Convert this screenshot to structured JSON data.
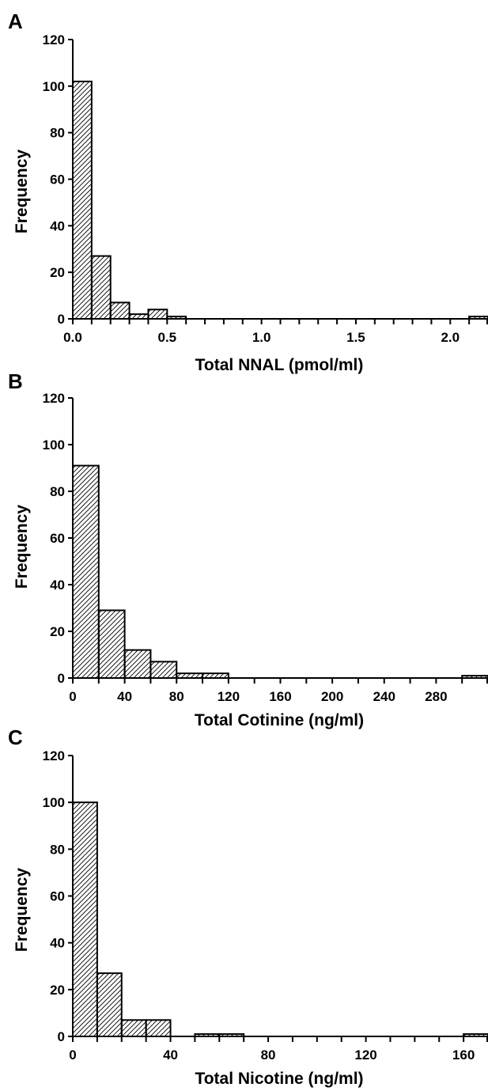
{
  "chart_data": [
    {
      "type": "bar",
      "panel": "A",
      "xlabel": "Total NNAL (pmol/ml)",
      "ylabel": "Frequency",
      "xlim": [
        0,
        2.2
      ],
      "ylim": [
        0,
        120
      ],
      "yticks": [
        0,
        20,
        40,
        60,
        80,
        100,
        120
      ],
      "x_tick_step": 0.1,
      "x_tick_labels": [
        {
          "value": 0,
          "label": "0.0"
        },
        {
          "value": 0.5,
          "label": "0.5"
        },
        {
          "value": 1.0,
          "label": "1.0"
        },
        {
          "value": 1.5,
          "label": "1.5"
        },
        {
          "value": 2.0,
          "label": "2.0"
        }
      ],
      "bins": [
        {
          "x0": 0.0,
          "x1": 0.1,
          "value": 102
        },
        {
          "x0": 0.1,
          "x1": 0.2,
          "value": 27
        },
        {
          "x0": 0.2,
          "x1": 0.3,
          "value": 7
        },
        {
          "x0": 0.3,
          "x1": 0.4,
          "value": 2
        },
        {
          "x0": 0.4,
          "x1": 0.5,
          "value": 4
        },
        {
          "x0": 0.5,
          "x1": 0.6,
          "value": 1
        },
        {
          "x0": 2.1,
          "x1": 2.2,
          "value": 1
        }
      ],
      "hatch": "diagonal"
    },
    {
      "type": "bar",
      "panel": "B",
      "xlabel": "Total Cotinine (ng/ml)",
      "ylabel": "Frequency",
      "xlim": [
        0,
        320
      ],
      "ylim": [
        0,
        120
      ],
      "yticks": [
        0,
        20,
        40,
        60,
        80,
        100,
        120
      ],
      "x_tick_step": 20,
      "x_tick_labels": [
        {
          "value": 0,
          "label": "0"
        },
        {
          "value": 40,
          "label": "40"
        },
        {
          "value": 80,
          "label": "80"
        },
        {
          "value": 120,
          "label": "120"
        },
        {
          "value": 160,
          "label": "160"
        },
        {
          "value": 200,
          "label": "200"
        },
        {
          "value": 240,
          "label": "240"
        },
        {
          "value": 280,
          "label": "280"
        }
      ],
      "bins": [
        {
          "x0": 0,
          "x1": 20,
          "value": 91
        },
        {
          "x0": 20,
          "x1": 40,
          "value": 29
        },
        {
          "x0": 40,
          "x1": 60,
          "value": 12
        },
        {
          "x0": 60,
          "x1": 80,
          "value": 7
        },
        {
          "x0": 80,
          "x1": 100,
          "value": 2
        },
        {
          "x0": 100,
          "x1": 120,
          "value": 2
        },
        {
          "x0": 300,
          "x1": 320,
          "value": 1
        }
      ],
      "hatch": "diagonal"
    },
    {
      "type": "bar",
      "panel": "C",
      "xlabel": "Total Nicotine (ng/ml)",
      "ylabel": "Frequency",
      "xlim": [
        0,
        170
      ],
      "ylim": [
        0,
        120
      ],
      "yticks": [
        0,
        20,
        40,
        60,
        80,
        100,
        120
      ],
      "x_tick_step": 10,
      "x_tick_labels": [
        {
          "value": 0,
          "label": "0"
        },
        {
          "value": 40,
          "label": "40"
        },
        {
          "value": 80,
          "label": "80"
        },
        {
          "value": 120,
          "label": "120"
        },
        {
          "value": 160,
          "label": "160"
        }
      ],
      "bins": [
        {
          "x0": 0,
          "x1": 10,
          "value": 100
        },
        {
          "x0": 10,
          "x1": 20,
          "value": 27
        },
        {
          "x0": 20,
          "x1": 30,
          "value": 7
        },
        {
          "x0": 30,
          "x1": 40,
          "value": 7
        },
        {
          "x0": 50,
          "x1": 60,
          "value": 1
        },
        {
          "x0": 60,
          "x1": 70,
          "value": 1
        },
        {
          "x0": 160,
          "x1": 170,
          "value": 1
        }
      ],
      "hatch": "diagonal"
    }
  ]
}
